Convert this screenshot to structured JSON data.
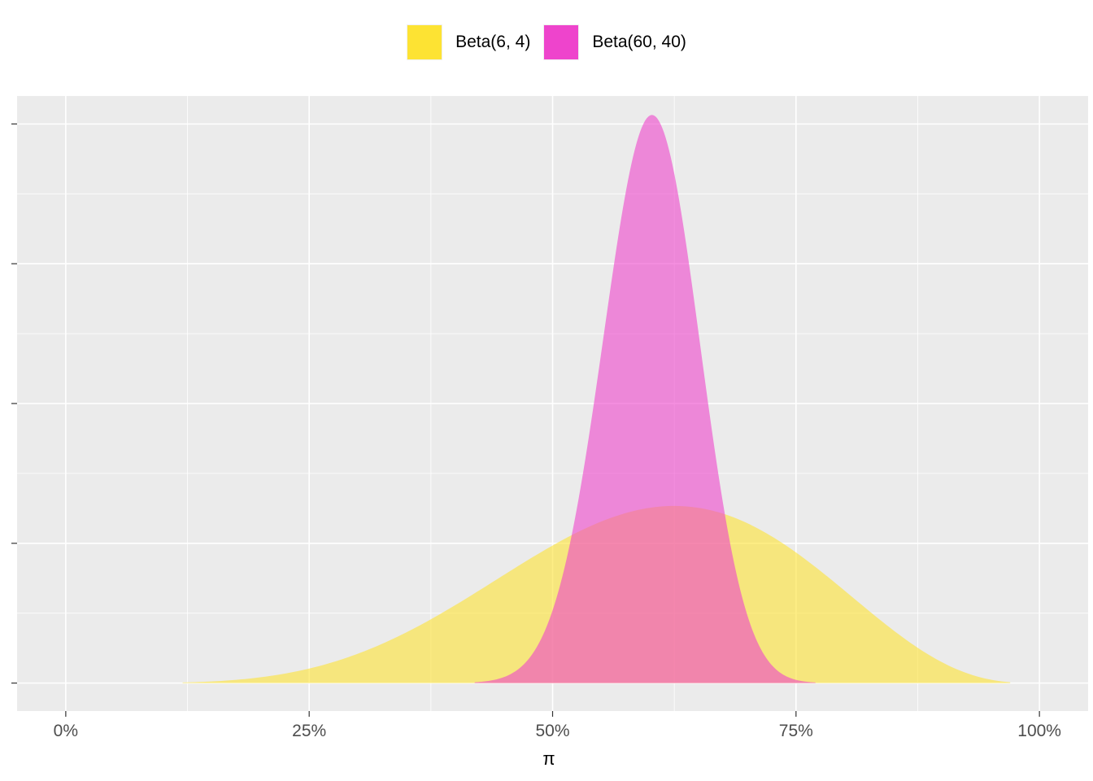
{
  "chart_data": {
    "type": "area",
    "xlabel": "π",
    "ylabel": "",
    "x_unit": "percent",
    "xlim": [
      -0.05,
      1.05
    ],
    "x_ticks": [
      0,
      0.25,
      0.5,
      0.75,
      1.0
    ],
    "x_tick_labels": [
      "0%",
      "25%",
      "50%",
      "75%",
      "100%"
    ],
    "ylim": [
      -0.4,
      8.4
    ],
    "y_ticks": [
      0,
      2,
      4,
      6,
      8
    ],
    "y_tick_labels_shown": false,
    "grid": true,
    "legend_position": "top",
    "series": [
      {
        "name": "Beta(6, 4)",
        "alpha": 6,
        "beta": 4,
        "support": [
          0.12,
          0.97
        ],
        "color": "#FDE333"
      },
      {
        "name": "Beta(60, 40)",
        "alpha": 60,
        "beta": 40,
        "support": [
          0.42,
          0.77
        ],
        "color": "#EE44CC"
      }
    ]
  },
  "colors": {
    "panel_background": "#EBEBEB",
    "grid_major": "#FFFFFF",
    "axis_text": "#4D4D4D",
    "series_opacity": 0.6
  }
}
